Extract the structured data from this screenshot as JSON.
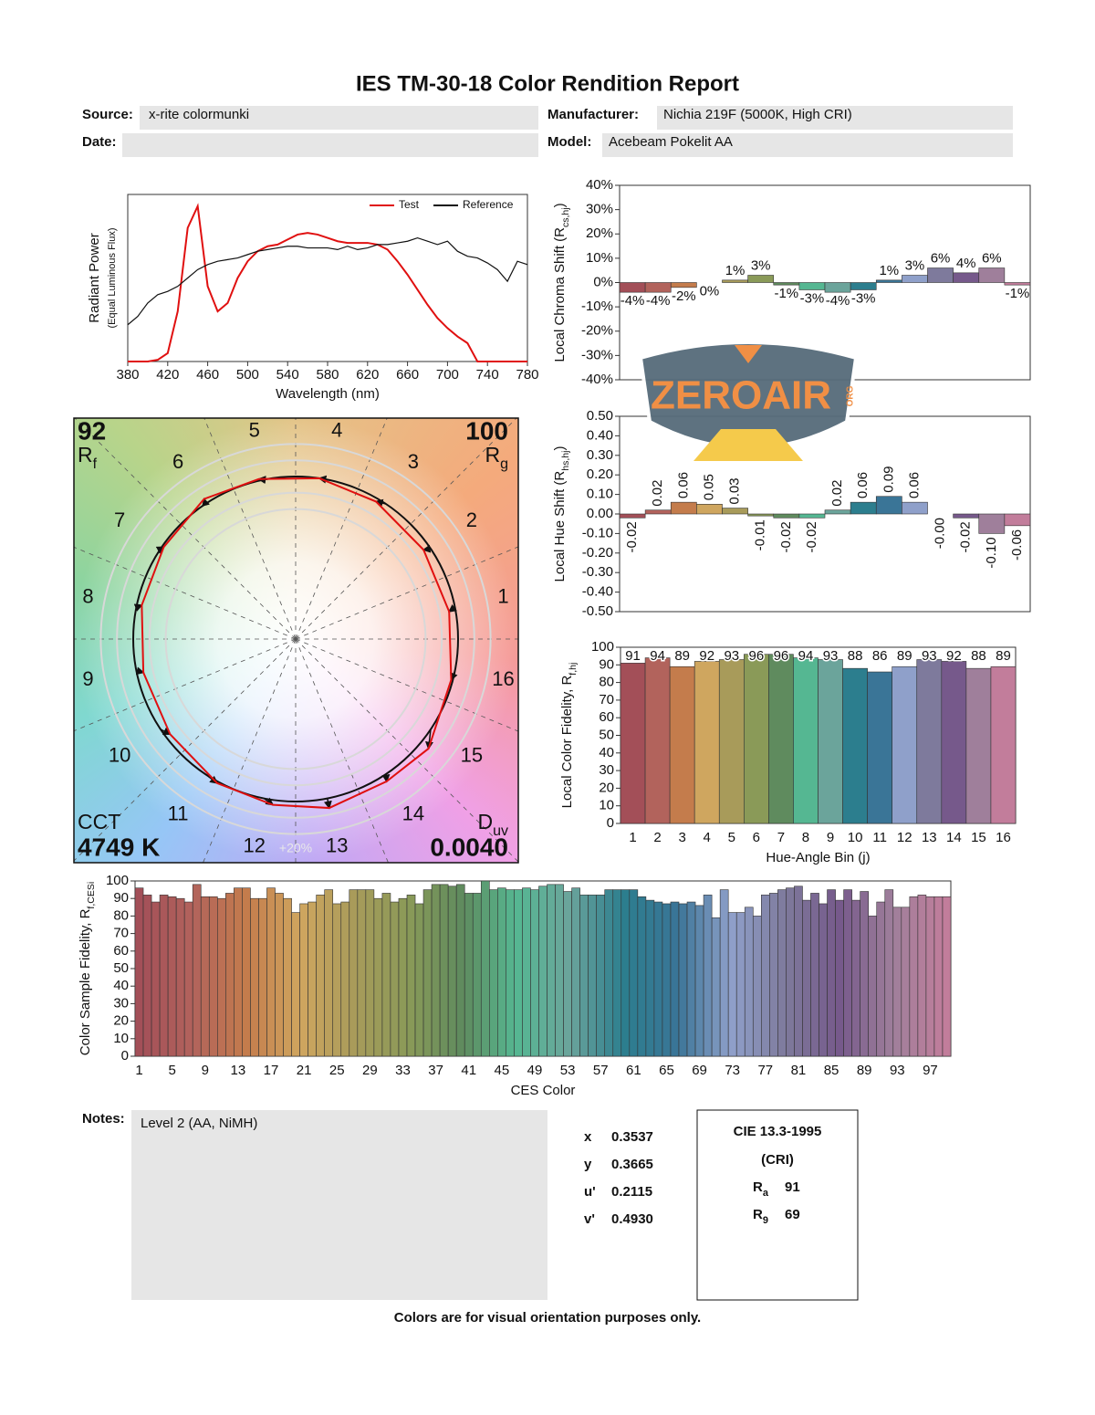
{
  "header": {
    "title": "IES TM-30-18 Color Rendition Report",
    "source_label": "Source:",
    "source": "x-rite colormunki",
    "manufacturer_label": "Manufacturer:",
    "manufacturer": "Nichia 219F (5000K, High CRI)",
    "date_label": "Date:",
    "model_label": "Model:",
    "model": "Acebeam Pokelit AA"
  },
  "chart_data": [
    {
      "type": "line",
      "x": [
        380,
        390,
        400,
        410,
        420,
        430,
        440,
        450,
        460,
        470,
        480,
        490,
        500,
        510,
        520,
        530,
        540,
        550,
        560,
        570,
        580,
        590,
        600,
        610,
        620,
        630,
        640,
        650,
        660,
        670,
        680,
        690,
        700,
        710,
        720,
        730,
        740,
        750,
        760,
        770,
        780
      ],
      "series": [
        {
          "name": "Test",
          "color": "#e01010",
          "values": [
            0,
            0,
            0,
            0.01,
            0.05,
            0.3,
            0.8,
            0.93,
            0.45,
            0.3,
            0.35,
            0.5,
            0.6,
            0.66,
            0.69,
            0.7,
            0.73,
            0.76,
            0.77,
            0.76,
            0.74,
            0.72,
            0.71,
            0.71,
            0.71,
            0.7,
            0.67,
            0.6,
            0.52,
            0.43,
            0.34,
            0.26,
            0.2,
            0.15,
            0.11,
            0,
            0,
            0,
            0,
            0,
            0
          ]
        },
        {
          "name": "Reference",
          "color": "#111111",
          "values": [
            0.22,
            0.27,
            0.35,
            0.4,
            0.42,
            0.45,
            0.5,
            0.55,
            0.58,
            0.6,
            0.61,
            0.62,
            0.64,
            0.66,
            0.67,
            0.68,
            0.69,
            0.69,
            0.68,
            0.68,
            0.68,
            0.67,
            0.69,
            0.67,
            0.68,
            0.7,
            0.7,
            0.71,
            0.72,
            0.74,
            0.72,
            0.7,
            0.72,
            0.66,
            0.63,
            0.62,
            0.59,
            0.55,
            0.48,
            0.6,
            0.58
          ]
        }
      ],
      "xlim": [
        380,
        780
      ],
      "xticks": [
        380,
        420,
        460,
        500,
        540,
        580,
        620,
        660,
        700,
        740,
        780
      ],
      "ylim": [
        0,
        1
      ],
      "xlabel": "Wavelength (nm)",
      "ylabel": "Radiant Power",
      "ylabel_note": "(Equal Luminous Flux)"
    },
    {
      "type": "bar",
      "values": [
        -4,
        -4,
        -2,
        0,
        1,
        3,
        -1,
        -3,
        -4,
        -3,
        1,
        3,
        6,
        4,
        6,
        -1
      ],
      "value_labels": [
        "-4%",
        "-4%",
        "-2%",
        "0%",
        "1%",
        "3%",
        "-1%",
        "-3%",
        "-4%",
        "-3%",
        "1%",
        "3%",
        "6%",
        "4%",
        "6%",
        "-1%"
      ],
      "colors": [
        "#a34f58",
        "#b2635c",
        "#c47c4c",
        "#cfa65f",
        "#a89b5a",
        "#8a9a58",
        "#5f8b5e",
        "#55b792",
        "#6ba49b",
        "#2c7e8e",
        "#3a7597",
        "#8fa0ca",
        "#7e7a9c",
        "#76598b",
        "#9f7f9b",
        "#c27d9b"
      ],
      "ylim": [
        -40,
        40
      ],
      "yticks": [
        {
          "value": -40,
          "label": "-40%"
        },
        {
          "value": -30,
          "label": "-30%"
        },
        {
          "value": -20,
          "label": "-20%"
        },
        {
          "value": -10,
          "label": "-10%"
        },
        {
          "value": 0,
          "label": "0%"
        },
        {
          "value": 10,
          "label": "10%"
        },
        {
          "value": 20,
          "label": "20%"
        },
        {
          "value": 30,
          "label": "30%"
        },
        {
          "value": 40,
          "label": "40%"
        }
      ],
      "ylabel": {
        "text": "Local Chroma Shift (R",
        "subscript": "cs,hj",
        "suffix": ")"
      }
    },
    {
      "type": "bar",
      "values": [
        -0.02,
        0.02,
        0.06,
        0.05,
        0.03,
        -0.01,
        -0.02,
        -0.02,
        0.02,
        0.06,
        0.09,
        0.06,
        0,
        -0.02,
        -0.1,
        -0.06
      ],
      "value_labels": [
        "-0.02",
        "0.02",
        "0.06",
        "0.05",
        "0.03",
        "-0.01",
        "-0.02",
        "-0.02",
        "0.02",
        "0.06",
        "0.09",
        "0.06",
        "-0.00",
        "-0.02",
        "-0.10",
        "-0.06"
      ],
      "colors": [
        "#a34f58",
        "#b2635c",
        "#c47c4c",
        "#cfa65f",
        "#a89b5a",
        "#8a9a58",
        "#5f8b5e",
        "#55b792",
        "#6ba49b",
        "#2c7e8e",
        "#3a7597",
        "#8fa0ca",
        "#7e7a9c",
        "#76598b",
        "#9f7f9b",
        "#c27d9b"
      ],
      "ylim": [
        -0.5,
        0.5
      ],
      "yticks": [
        {
          "value": -0.5,
          "label": "-0.50"
        },
        {
          "value": -0.4,
          "label": "-0.40"
        },
        {
          "value": -0.3,
          "label": "-0.30"
        },
        {
          "value": -0.2,
          "label": "-0.20"
        },
        {
          "value": -0.1,
          "label": "-0.10"
        },
        {
          "value": 0,
          "label": "0.00"
        },
        {
          "value": 0.1,
          "label": "0.10"
        },
        {
          "value": 0.2,
          "label": "0.20"
        },
        {
          "value": 0.3,
          "label": "0.30"
        },
        {
          "value": 0.4,
          "label": "0.40"
        },
        {
          "value": 0.5,
          "label": "0.50"
        }
      ],
      "ylabel": {
        "text": "Local Hue Shift (R",
        "subscript": "hs,hj",
        "suffix": ")"
      }
    },
    {
      "type": "bar",
      "categories": [
        "1",
        "2",
        "3",
        "4",
        "5",
        "6",
        "7",
        "8",
        "9",
        "10",
        "11",
        "12",
        "13",
        "14",
        "15",
        "16"
      ],
      "values": [
        91,
        94,
        89,
        92,
        93,
        96,
        96,
        94,
        93,
        88,
        86,
        89,
        93,
        92,
        88,
        89
      ],
      "colors": [
        "#a34f58",
        "#b2635c",
        "#c47c4c",
        "#cfa65f",
        "#a89b5a",
        "#8a9a58",
        "#5f8b5e",
        "#55b792",
        "#6ba49b",
        "#2c7e8e",
        "#3a7597",
        "#8fa0ca",
        "#7e7a9c",
        "#76598b",
        "#9f7f9b",
        "#c27d9b"
      ],
      "ylim": [
        0,
        100
      ],
      "yticks": [
        0,
        10,
        20,
        30,
        40,
        50,
        60,
        70,
        80,
        90,
        100
      ],
      "xlabel": "Hue-Angle Bin (j)",
      "ylabel": {
        "text": "Local Color Fidelity, R",
        "subscript": "f,hj"
      }
    },
    {
      "type": "bar",
      "categories": [
        "1",
        null,
        null,
        null,
        "5",
        null,
        null,
        null,
        "9",
        null,
        null,
        null,
        "13",
        null,
        null,
        null,
        "17",
        null,
        null,
        null,
        "21",
        null,
        null,
        null,
        "25",
        null,
        null,
        null,
        "29",
        null,
        null,
        null,
        "33",
        null,
        null,
        null,
        "37",
        null,
        null,
        null,
        "41",
        null,
        null,
        null,
        "45",
        null,
        null,
        null,
        "49",
        null,
        null,
        null,
        "53",
        null,
        null,
        null,
        "57",
        null,
        null,
        null,
        "61",
        null,
        null,
        null,
        "65",
        null,
        null,
        null,
        "69",
        null,
        null,
        null,
        "73",
        null,
        null,
        null,
        "77",
        null,
        null,
        null,
        "81",
        null,
        null,
        null,
        "85",
        null,
        null,
        null,
        "89",
        null,
        null,
        null,
        "93",
        null,
        null,
        null,
        "97",
        null,
        null
      ],
      "values": [
        96,
        92,
        88,
        92,
        91,
        90,
        88,
        98,
        91,
        91,
        90,
        93,
        96,
        96,
        90,
        90,
        96,
        93,
        90,
        82,
        87,
        88,
        92,
        95,
        87,
        88,
        95,
        95,
        95,
        90,
        93,
        88,
        90,
        92,
        87,
        95,
        98,
        98,
        97,
        98,
        93,
        93,
        100,
        95,
        96,
        95,
        95,
        96,
        95,
        97,
        98,
        98,
        94,
        96,
        92,
        92,
        92,
        95,
        95,
        95,
        95,
        91,
        89,
        88,
        87,
        88,
        87,
        88,
        86,
        92,
        79,
        95,
        82,
        82,
        85,
        80,
        92,
        93,
        95,
        96,
        97,
        89,
        93,
        87,
        95,
        89,
        95,
        89,
        94,
        80,
        88,
        95,
        85,
        85,
        91,
        92,
        91,
        91,
        91
      ],
      "color_ramp": [
        "#a34f58",
        "#b2635c",
        "#c47c4c",
        "#cfa65f",
        "#a89b5a",
        "#8a9a58",
        "#5f8b5e",
        "#55b792",
        "#6ba49b",
        "#2c7e8e",
        "#3a7597",
        "#8fa0ca",
        "#7e7a9c",
        "#76598b",
        "#9f7f9b",
        "#c27d9b"
      ],
      "ylim": [
        0,
        100
      ],
      "yticks": [
        0,
        10,
        20,
        30,
        40,
        50,
        60,
        70,
        80,
        90,
        100
      ],
      "xlabel": "CES Color",
      "ylabel": {
        "text": "Color Sample Fidelity, R",
        "subscript": "f,CESi"
      }
    },
    {
      "type": "vector",
      "bins": [
        "1",
        "2",
        "3",
        "4",
        "5",
        "6",
        "7",
        "8",
        "9",
        "10",
        "11",
        "12",
        "13",
        "14",
        "15",
        "16"
      ],
      "ring_label": "+20%",
      "metrics": [
        {
          "symbol": "R",
          "subscript": "f",
          "value": 92
        },
        {
          "symbol": "R",
          "subscript": "g",
          "value": 100
        },
        {
          "symbol": "CCT",
          "value": 4749,
          "value_label": "4749 K"
        },
        {
          "symbol": "D",
          "subscript": "uv",
          "value": 0.004,
          "value_label": "0.0040"
        }
      ]
    }
  ],
  "watermark": {
    "text": "ZEROAIR",
    "suffix": "ORG"
  },
  "notes": {
    "label": "Notes:",
    "text": "Level 2 (AA, NiMH)"
  },
  "chromaticity": [
    {
      "label": "x",
      "value": "0.3537"
    },
    {
      "label": "y",
      "value": "0.3665"
    },
    {
      "label": "u'",
      "value": "0.2115"
    },
    {
      "label": "v'",
      "value": "0.4930"
    }
  ],
  "cri": {
    "title": "CIE 13.3-1995",
    "subtitle": "(CRI)",
    "items": [
      {
        "symbol": "R",
        "subscript": "a",
        "value": 91
      },
      {
        "symbol": "R",
        "subscript": "9",
        "value": 69
      }
    ]
  },
  "footer": "Colors are for visual orientation purposes only."
}
